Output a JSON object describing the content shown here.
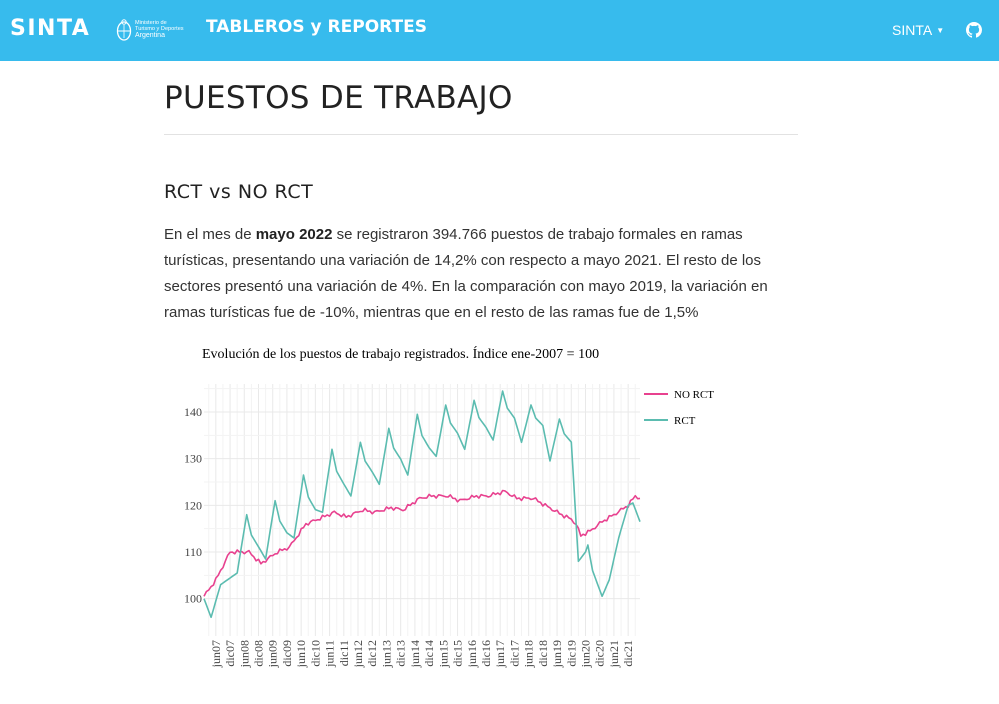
{
  "navbar": {
    "brand": "SINTA",
    "ministry": {
      "line1": "Ministerio de",
      "line2": "Turismo y Deportes",
      "line3": "Argentina"
    },
    "title": "TABLEROS y REPORTES",
    "menu_label": "SINTA",
    "github_icon": "github-icon",
    "background": "#37bbed"
  },
  "page": {
    "title": "PUESTOS DE TRABAJO",
    "section_title": "RCT vs NO RCT",
    "paragraph": {
      "p1": "En el mes de ",
      "bold": "mayo 2022",
      "p2": " se registraron 394.766 puestos de trabajo formales en ramas turísticas, presentando una variación de 14,2% con respecto a mayo 2021. El resto de los sectores presentó una variación de 4%. En la comparación con mayo 2019, la variación en ramas turísticas fue de -10%, mientras que en el resto de las ramas fue de 1,5%"
    }
  },
  "chart_data": {
    "type": "line",
    "title": "Evolución de los puestos de trabajo registrados. Índice ene-2007 = 100",
    "xlabel": "",
    "ylabel": "",
    "ylim": [
      92,
      146
    ],
    "y_ticks": [
      100,
      110,
      120,
      130,
      140
    ],
    "x_ticks": [
      "jun07",
      "dic07",
      "jun08",
      "dic08",
      "jun09",
      "dic09",
      "jun10",
      "dic10",
      "jun11",
      "dic11",
      "jun12",
      "dic12",
      "jun13",
      "dic13",
      "jun14",
      "dic14",
      "jun15",
      "dic15",
      "jun16",
      "dic16",
      "jun17",
      "dic17",
      "jun18",
      "dic18",
      "jun19",
      "dic19",
      "jun20",
      "dic20",
      "jun21",
      "dic21"
    ],
    "x_start": "2007-01",
    "x_end": "2022-05",
    "grid": true,
    "legend": "top-right",
    "series": [
      {
        "name": "NO RCT",
        "color": "#e8418f",
        "anchors": [
          [
            "2007-01",
            100.5
          ],
          [
            "2007-06",
            104
          ],
          [
            "2007-12",
            110
          ],
          [
            "2008-04",
            110
          ],
          [
            "2008-08",
            110
          ],
          [
            "2009-01",
            107.5
          ],
          [
            "2009-08",
            110
          ],
          [
            "2010-01",
            111
          ],
          [
            "2010-08",
            116
          ],
          [
            "2011-01",
            117
          ],
          [
            "2011-08",
            118.5
          ],
          [
            "2012-01",
            117.5
          ],
          [
            "2012-08",
            119
          ],
          [
            "2013-01",
            118.5
          ],
          [
            "2013-08",
            119.5
          ],
          [
            "2014-01",
            119
          ],
          [
            "2014-08",
            121.5
          ],
          [
            "2015-01",
            122
          ],
          [
            "2015-08",
            122
          ],
          [
            "2016-01",
            121
          ],
          [
            "2016-08",
            122
          ],
          [
            "2017-01",
            122
          ],
          [
            "2017-08",
            123
          ],
          [
            "2018-01",
            121.5
          ],
          [
            "2018-08",
            121.5
          ],
          [
            "2019-01",
            120
          ],
          [
            "2019-08",
            118
          ],
          [
            "2019-12",
            117
          ],
          [
            "2020-02",
            116
          ],
          [
            "2020-04",
            113.5
          ],
          [
            "2020-08",
            114.5
          ],
          [
            "2021-01",
            116.5
          ],
          [
            "2021-06",
            118
          ],
          [
            "2021-12",
            120
          ],
          [
            "2022-03",
            122
          ],
          [
            "2022-05",
            121.5
          ]
        ],
        "wiggle": 0.5
      },
      {
        "name": "RCT",
        "color": "#5bbcb0",
        "peaks": [
          [
            2007,
            null,
            110.5
          ],
          [
            2008,
            105.5,
            118
          ],
          [
            2009,
            108.5,
            121
          ],
          [
            2010,
            113,
            126.5
          ],
          [
            2011,
            118.5,
            132
          ],
          [
            2012,
            122,
            133.5
          ],
          [
            2013,
            124.5,
            136.5
          ],
          [
            2014,
            126.5,
            139.5
          ],
          [
            2015,
            130.5,
            141.5
          ],
          [
            2016,
            132,
            142.5
          ],
          [
            2017,
            134,
            144.5
          ],
          [
            2018,
            133.5,
            141.5
          ],
          [
            2019,
            129.5,
            138.5
          ]
        ],
        "tail": [
          [
            "2007-01",
            100
          ],
          [
            "2007-04",
            96
          ],
          [
            "2007-08",
            103
          ],
          [
            "2020-03",
            108
          ],
          [
            "2020-06",
            110
          ],
          [
            "2020-07",
            111.5
          ],
          [
            "2020-09",
            106
          ],
          [
            "2021-01",
            100.5
          ],
          [
            "2021-04",
            104
          ],
          [
            "2021-08",
            113
          ],
          [
            "2021-12",
            120
          ],
          [
            "2022-02",
            120.5
          ],
          [
            "2022-05",
            116.5
          ]
        ]
      }
    ]
  }
}
